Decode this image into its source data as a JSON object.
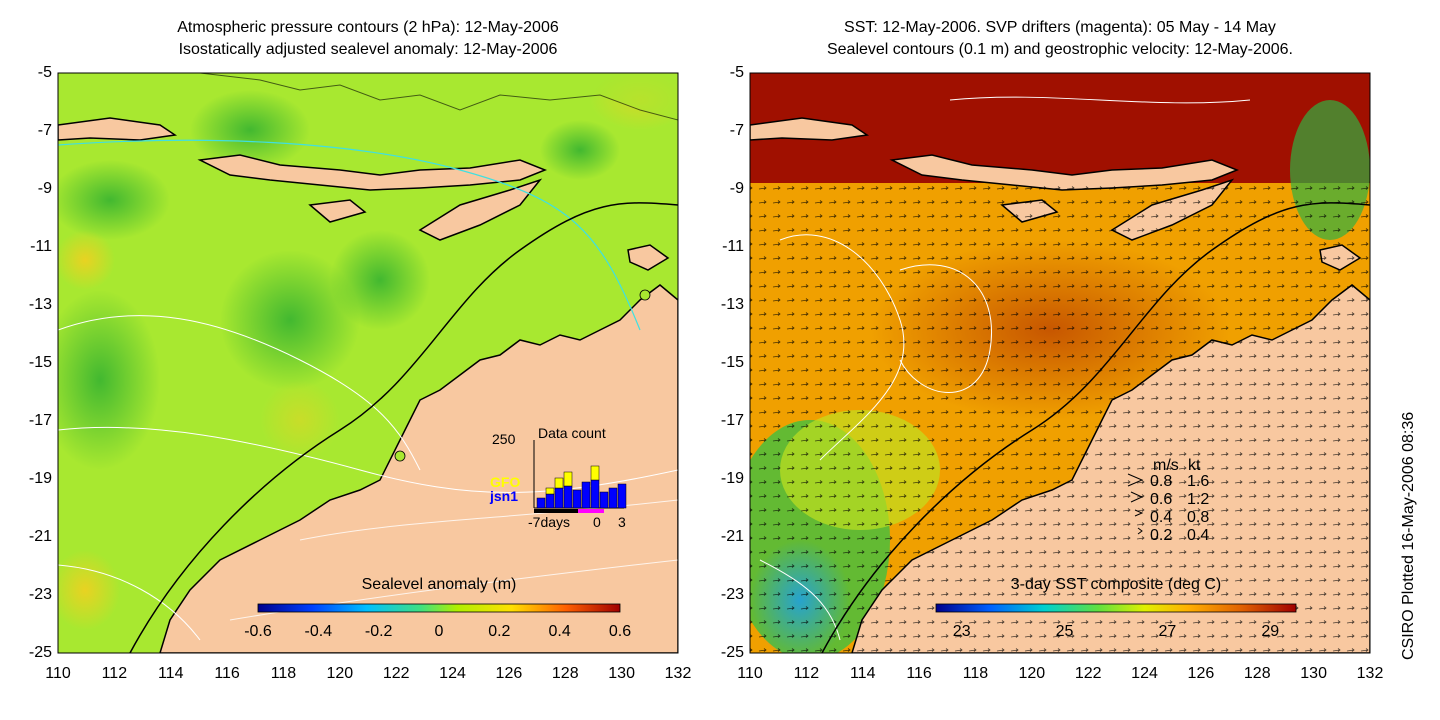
{
  "left_panel": {
    "title_line1": "Atmospheric pressure contours (2 hPa): 12-May-2006",
    "title_line2": "Isostatically adjusted sealevel anomaly: 12-May-2006",
    "colorbar_label": "Sealevel anomaly (m)",
    "colorbar_ticks": [
      "-0.6",
      "-0.4",
      "-0.2",
      "0",
      "0.2",
      "0.4",
      "0.6"
    ],
    "colorbar_range": [
      -0.6,
      0.6
    ],
    "inset": {
      "title": "Data count",
      "ymax_label": "250",
      "legend_gfo": "GFO",
      "legend_jsn1": "jsn1",
      "x_labels": [
        "-7days",
        "0",
        "3"
      ],
      "gfo_color": "#ffff00",
      "jsn1_color": "#0000ff"
    }
  },
  "right_panel": {
    "title_line1": "SST: 12-May-2006. SVP drifters (magenta): 05 May - 14 May",
    "title_line2": "Sealevel contours (0.1 m) and geostrophic velocity: 12-May-2006.",
    "colorbar_label": "3-day SST composite (deg C)",
    "colorbar_ticks": [
      "23",
      "25",
      "27",
      "29"
    ],
    "colorbar_range": [
      22.5,
      29.5
    ],
    "velocity_legend": {
      "header_ms": "m/s",
      "header_kt": "kt",
      "rows": [
        {
          "ms": "0.8",
          "kt": "1.6"
        },
        {
          "ms": "0.6",
          "kt": "1.2"
        },
        {
          "ms": "0.4",
          "kt": "0.8"
        },
        {
          "ms": "0.2",
          "kt": "0.4"
        }
      ]
    }
  },
  "axes": {
    "lat_ticks": [
      "-5",
      "-7",
      "-9",
      "-11",
      "-13",
      "-15",
      "-17",
      "-19",
      "-21",
      "-23",
      "-25"
    ],
    "lon_ticks": [
      "110",
      "112",
      "114",
      "116",
      "118",
      "120",
      "122",
      "124",
      "126",
      "128",
      "130",
      "132"
    ],
    "lat_range": [
      -25,
      -5
    ],
    "lon_range": [
      110,
      132
    ]
  },
  "side_label": "CSIRO Plotted 16-May-2006 08:36",
  "colors": {
    "land": "#f8c8a0",
    "contour": "#ffffff",
    "cyan_line": "#40e0e0"
  }
}
